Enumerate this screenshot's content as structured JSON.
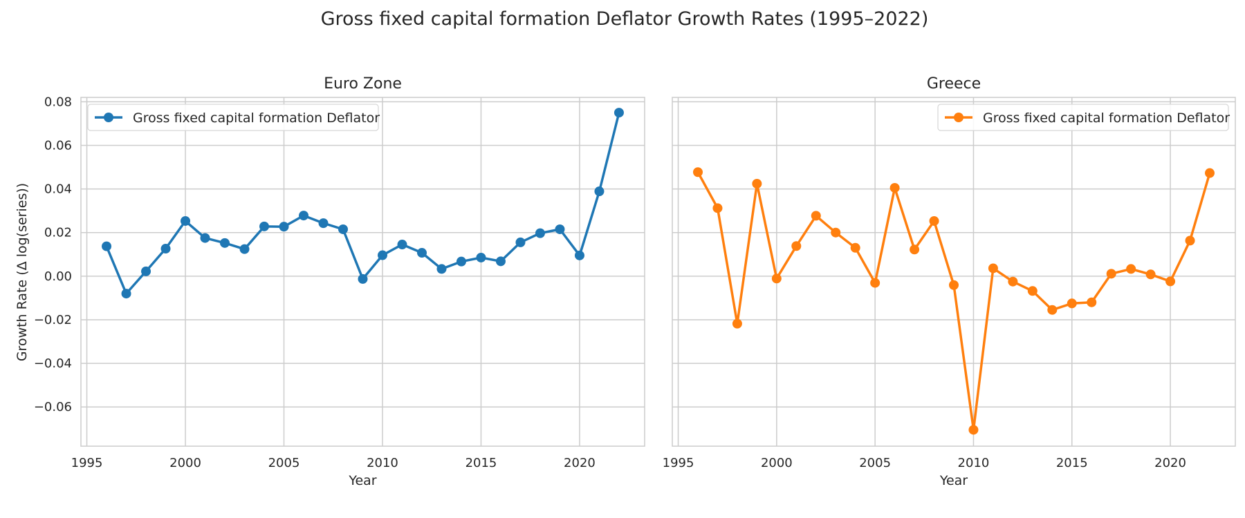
{
  "chart_data": {
    "type": "line",
    "title": "Gross fixed capital formation Deflator Growth Rates (1995–2022)",
    "xlabel": "Year",
    "ylabel": "Growth Rate (Δ log(series))",
    "xlim": [
      1994.7,
      2023.3
    ],
    "ylim": [
      -0.078,
      0.082
    ],
    "xticks": [
      1995,
      2000,
      2005,
      2010,
      2015,
      2020
    ],
    "yticks": [
      -0.06,
      -0.04,
      -0.02,
      0.0,
      0.02,
      0.04,
      0.06,
      0.08
    ],
    "ytick_labels": [
      "−0.06",
      "−0.04",
      "−0.02",
      "0.00",
      "0.02",
      "0.04",
      "0.06",
      "0.08"
    ],
    "grid": true,
    "x": [
      1996,
      1997,
      1998,
      1999,
      2000,
      2001,
      2002,
      2003,
      2004,
      2005,
      2006,
      2007,
      2008,
      2009,
      2010,
      2011,
      2012,
      2013,
      2014,
      2015,
      2016,
      2017,
      2018,
      2019,
      2020,
      2021,
      2022
    ],
    "panels": [
      {
        "title": "Euro Zone",
        "legend_loc": "upper left",
        "series": [
          {
            "name": "Gross fixed capital formation Deflator",
            "color": "#1f77b4",
            "values": [
              0.0137,
              -0.008,
              0.0022,
              0.0126,
              0.0253,
              0.0175,
              0.0152,
              0.0124,
              0.0228,
              0.0227,
              0.0278,
              0.0243,
              0.0215,
              -0.0013,
              0.0096,
              0.0145,
              0.0107,
              0.0033,
              0.0067,
              0.0085,
              0.0068,
              0.0155,
              0.0197,
              0.0215,
              0.0095,
              0.0389,
              0.075
            ]
          }
        ]
      },
      {
        "title": "Greece",
        "legend_loc": "upper right",
        "series": [
          {
            "name": "Gross fixed capital formation Deflator",
            "color": "#ff7f0e",
            "values": [
              0.0477,
              0.0312,
              -0.0218,
              0.0424,
              -0.0011,
              0.0138,
              0.0277,
              0.02,
              0.013,
              -0.0031,
              0.0405,
              0.0122,
              0.0253,
              -0.0041,
              -0.0705,
              0.0036,
              -0.0025,
              -0.0068,
              -0.0155,
              -0.0125,
              -0.012,
              0.0011,
              0.0033,
              0.0008,
              -0.0024,
              0.0163,
              0.0473
            ]
          }
        ]
      }
    ]
  }
}
